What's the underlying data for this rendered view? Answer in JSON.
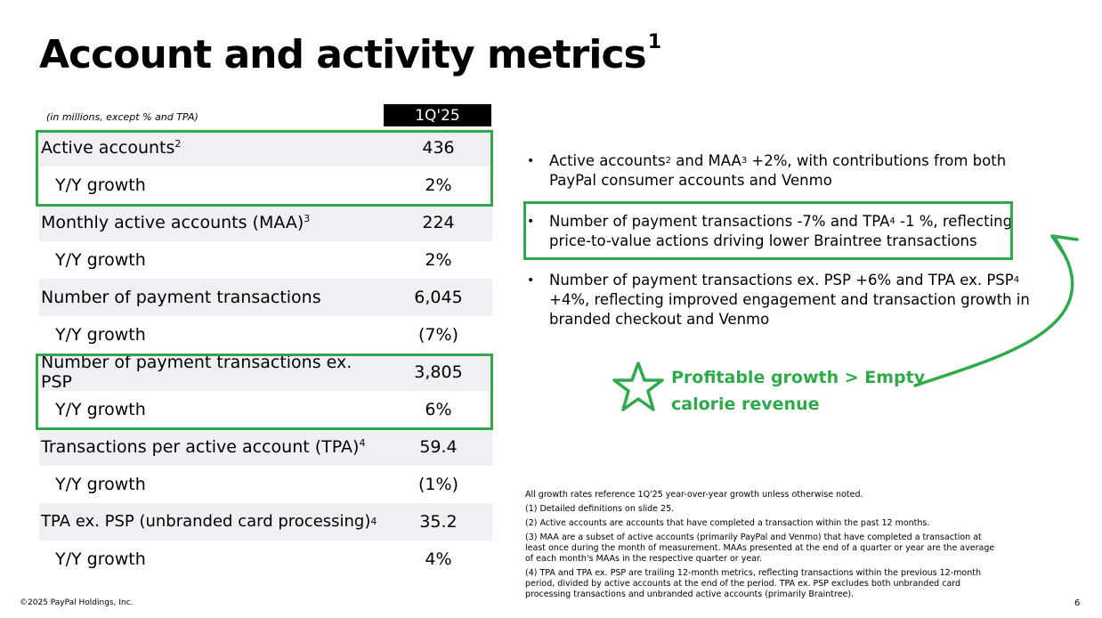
{
  "title": "Account and activity metrics",
  "title_sup": "1",
  "subhead": "(in millions, except % and TPA)",
  "column_header": "1Q'25",
  "rows": [
    {
      "label": "Active accounts",
      "sup": "2",
      "value": "436"
    },
    {
      "label": "Y/Y growth",
      "sup": "",
      "value": "2%"
    },
    {
      "label": "Monthly active accounts (MAA)",
      "sup": "3",
      "value": "224"
    },
    {
      "label": "Y/Y growth",
      "sup": "",
      "value": "2%"
    },
    {
      "label": "Number of payment transactions",
      "sup": "",
      "value": "6,045"
    },
    {
      "label": "Y/Y growth",
      "sup": "",
      "value": "(7%)"
    },
    {
      "label": "Number of payment transactions ex. PSP",
      "sup": "",
      "value": "3,805"
    },
    {
      "label": "Y/Y growth",
      "sup": "",
      "value": "6%"
    },
    {
      "label": "Transactions per active account (TPA)",
      "sup": "4",
      "value": "59.4"
    },
    {
      "label": "Y/Y growth",
      "sup": "",
      "value": "(1%)"
    },
    {
      "label": "TPA ex. PSP (unbranded card processing)",
      "sup": "4",
      "value": "35.2"
    },
    {
      "label": "Y/Y growth",
      "sup": "",
      "value": "4%"
    }
  ],
  "bullets": [
    {
      "pre": "Active accounts",
      "s1": "2",
      "mid": " and MAA",
      "s2": "3",
      "post": " +2%, with contributions from both PayPal consumer accounts and Venmo"
    },
    {
      "pre": "Number of payment transactions -7% and TPA",
      "s1": "4",
      "mid": " -1 %, reflecting price-to-value actions driving lower Braintree transactions",
      "s2": "",
      "post": ""
    },
    {
      "pre": "Number of payment transactions ex. PSP +6% and TPA ex. PSP",
      "s1": "4",
      "mid": " +4%, reflecting improved engagement and transaction growth in branded checkout and Venmo",
      "s2": "",
      "post": ""
    }
  ],
  "callout": {
    "line1": "Profitable growth > Empty",
    "line2": "calorie revenue"
  },
  "notes": [
    "All growth rates reference 1Q'25 year-over-year growth unless otherwise noted.",
    "(1) Detailed definitions on slide 25.",
    "(2) Active accounts are accounts that have completed a transaction within the past 12 months.",
    "(3) MAA are a subset of active accounts (primarily PayPal and Venmo) that have completed a transaction at least once during the month of measurement. MAAs presented at the end of a quarter or year are the average of each month's MAAs in the respective quarter or year.",
    "(4) TPA and TPA ex. PSP are trailing 12-month metrics, reflecting transactions within the previous 12-month period, divided by active accounts at the end of the period. TPA ex. PSP excludes both unbranded card processing transactions and unbranded active accounts (primarily Braintree)."
  ],
  "footer": "©2025 PayPal Holdings, Inc.",
  "page_number": "6",
  "colors": {
    "highlight": "#2eaa4a",
    "header_bg": "#000000",
    "row_shade": "#eef0f3"
  },
  "icons": [
    "star-icon",
    "curved-arrow-icon"
  ]
}
